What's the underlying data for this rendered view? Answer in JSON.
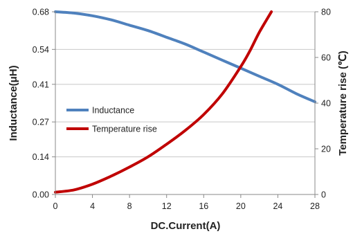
{
  "chart_data": {
    "type": "line",
    "xlabel": "DC.Current(A)",
    "ylabel_left": "Inductance(μH)",
    "ylabel_right": "Temperature rise (℃)",
    "xlim": [
      0,
      28
    ],
    "xticks": [
      0,
      4,
      8,
      12,
      16,
      20,
      24,
      28
    ],
    "ylim_left": [
      0,
      0.68
    ],
    "yticks_left": [
      "0.00",
      "0.14",
      "0.27",
      "0.41",
      "0.54",
      "0.68"
    ],
    "ylim_right": [
      0,
      80
    ],
    "yticks_right": [
      "0",
      "20",
      "40",
      "60",
      "80"
    ],
    "grid": "horizontal",
    "legend_position": "middle-left",
    "series": [
      {
        "name": "Inductance",
        "axis": "left",
        "color": "#4f81bd",
        "x": [
          0,
          2,
          4,
          6,
          8,
          10,
          12,
          14,
          16,
          18,
          20,
          22,
          24,
          26,
          28
        ],
        "y": [
          0.68,
          0.675,
          0.665,
          0.65,
          0.63,
          0.61,
          0.585,
          0.56,
          0.53,
          0.5,
          0.47,
          0.44,
          0.41,
          0.375,
          0.345
        ]
      },
      {
        "name": "Temperature rise",
        "axis": "right",
        "color": "#c00000",
        "x": [
          0,
          2,
          4,
          6,
          8,
          10,
          12,
          14,
          16,
          18,
          20,
          21,
          22,
          23.3
        ],
        "y": [
          1,
          2,
          4.5,
          8,
          12,
          16.5,
          22,
          28,
          35,
          44,
          56,
          63,
          71,
          80
        ]
      }
    ]
  }
}
